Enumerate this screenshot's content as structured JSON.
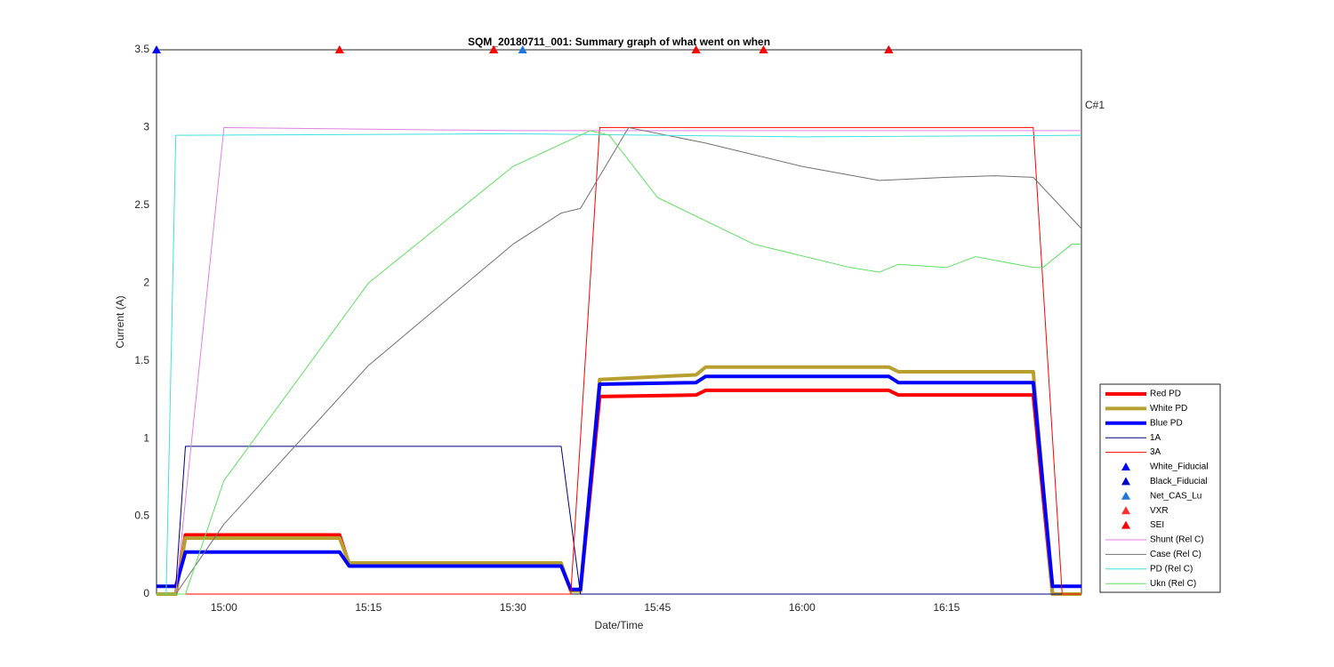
{
  "chart_data": {
    "type": "line",
    "title": "SQM_20180711_001: Summary graph of what went on when",
    "xlabel": "Date/Time",
    "ylabel": "Current (A)",
    "annotation": "C#1",
    "xlim": [
      "14:53",
      "16:29"
    ],
    "xticks": [
      "15:00",
      "15:15",
      "15:30",
      "15:45",
      "16:00",
      "16:15"
    ],
    "ylim": [
      0,
      3.5
    ],
    "yticks": [
      0,
      0.5,
      1,
      1.5,
      2,
      2.5,
      3,
      3.5
    ],
    "grid": true,
    "series": [
      {
        "name": "Red PD",
        "color": "#ff0000",
        "style": "line",
        "linewidth": 4,
        "x": [
          "14:53",
          "14:55",
          "14:56",
          "15:12",
          "15:13",
          "15:35",
          "15:36",
          "15:37",
          "15:39",
          "15:49",
          "15:50",
          "16:09",
          "16:10",
          "16:24",
          "16:26",
          "16:29"
        ],
        "values": [
          0,
          0,
          0.38,
          0.38,
          0.19,
          0.19,
          0.02,
          0.02,
          1.27,
          1.28,
          1.31,
          1.31,
          1.28,
          1.28,
          0,
          0
        ]
      },
      {
        "name": "White PD",
        "color": "#b8a030",
        "style": "line",
        "linewidth": 4,
        "x": [
          "14:53",
          "14:55",
          "14:56",
          "15:12",
          "15:13",
          "15:35",
          "15:36",
          "15:37",
          "15:39",
          "15:49",
          "15:50",
          "16:09",
          "16:10",
          "16:24",
          "16:26",
          "16:29"
        ],
        "values": [
          0,
          0,
          0.36,
          0.36,
          0.2,
          0.2,
          0.02,
          0.02,
          1.38,
          1.41,
          1.46,
          1.46,
          1.43,
          1.43,
          0,
          0
        ]
      },
      {
        "name": "Blue PD",
        "color": "#0000ff",
        "style": "line",
        "linewidth": 4,
        "x": [
          "14:53",
          "14:55",
          "14:56",
          "15:12",
          "15:13",
          "15:35",
          "15:36",
          "15:37",
          "15:39",
          "15:49",
          "15:50",
          "16:09",
          "16:10",
          "16:24",
          "16:26",
          "16:29"
        ],
        "values": [
          0.05,
          0.05,
          0.27,
          0.27,
          0.18,
          0.18,
          0.03,
          0.03,
          1.35,
          1.36,
          1.4,
          1.4,
          1.36,
          1.36,
          0.05,
          0.05
        ]
      },
      {
        "name": "1A",
        "color": "#000080",
        "style": "line",
        "linewidth": 1,
        "x": [
          "14:53",
          "14:55",
          "14:56",
          "15:35",
          "15:37",
          "16:29"
        ],
        "values": [
          0.05,
          0.05,
          0.95,
          0.95,
          0,
          0
        ]
      },
      {
        "name": "3A",
        "color": "#ff0000",
        "style": "line",
        "linewidth": 1,
        "x": [
          "14:53",
          "15:36",
          "15:39",
          "16:24",
          "16:27",
          "16:29"
        ],
        "values": [
          0,
          0,
          3,
          3,
          0,
          0
        ]
      },
      {
        "name": "White_Fiducial",
        "color": "#0000ff",
        "style": "marker",
        "x": [
          "14:53",
          "16:09"
        ],
        "values": [
          3.5,
          3.5
        ]
      },
      {
        "name": "Black_Fiducial",
        "color": "#0000cc",
        "style": "marker",
        "x": [
          "15:28",
          "16:09"
        ],
        "values": [
          3.5,
          3.5
        ]
      },
      {
        "name": "Net_CAS_Lu",
        "color": "#1e78dc",
        "style": "marker",
        "x": [
          "15:31"
        ],
        "values": [
          3.5
        ]
      },
      {
        "name": "VXR",
        "color": "#ff3030",
        "style": "marker",
        "x": [
          "15:12",
          "15:28",
          "15:49",
          "15:56"
        ],
        "values": [
          3.5,
          3.5,
          3.5,
          3.5
        ]
      },
      {
        "name": "SEI",
        "color": "#ff0000",
        "style": "marker",
        "x": [
          "15:12",
          "15:28",
          "15:49",
          "15:56",
          "16:09"
        ],
        "values": [
          3.5,
          3.5,
          3.5,
          3.5,
          3.5
        ]
      },
      {
        "name": "Shunt (Rel C)",
        "color": "#e080e0",
        "style": "line",
        "linewidth": 1,
        "x": [
          "14:53",
          "14:55",
          "15:00",
          "15:30",
          "16:00",
          "16:29"
        ],
        "values": [
          0,
          0,
          3,
          2.98,
          2.98,
          2.98
        ]
      },
      {
        "name": "Case (Rel C)",
        "color": "#707070",
        "style": "line",
        "linewidth": 1,
        "x": [
          "14:53",
          "14:55",
          "15:00",
          "15:15",
          "15:30",
          "15:35",
          "15:37",
          "15:42",
          "15:50",
          "16:00",
          "16:08",
          "16:15",
          "16:20",
          "16:24",
          "16:29"
        ],
        "values": [
          0,
          0,
          0.45,
          1.47,
          2.25,
          2.45,
          2.48,
          3,
          2.9,
          2.75,
          2.66,
          2.68,
          2.69,
          2.68,
          2.35
        ]
      },
      {
        "name": "PD (Rel C)",
        "color": "#40e0e0",
        "style": "line",
        "linewidth": 1,
        "x": [
          "14:53",
          "14:54",
          "14:55",
          "15:30",
          "16:00",
          "16:29"
        ],
        "values": [
          0,
          0,
          2.95,
          2.96,
          2.94,
          2.95
        ]
      },
      {
        "name": "Ukn (Rel C)",
        "color": "#60e060",
        "style": "line",
        "linewidth": 1,
        "x": [
          "14:53",
          "14:56",
          "15:00",
          "15:15",
          "15:30",
          "15:38",
          "15:40",
          "15:45",
          "15:55",
          "16:05",
          "16:08",
          "16:10",
          "16:15",
          "16:18",
          "16:24",
          "16:25",
          "16:28",
          "16:29"
        ],
        "values": [
          0,
          0,
          0.73,
          2,
          2.75,
          2.98,
          2.95,
          2.55,
          2.25,
          2.1,
          2.07,
          2.12,
          2.1,
          2.17,
          2.1,
          2.1,
          2.25,
          2.25
        ]
      }
    ]
  }
}
